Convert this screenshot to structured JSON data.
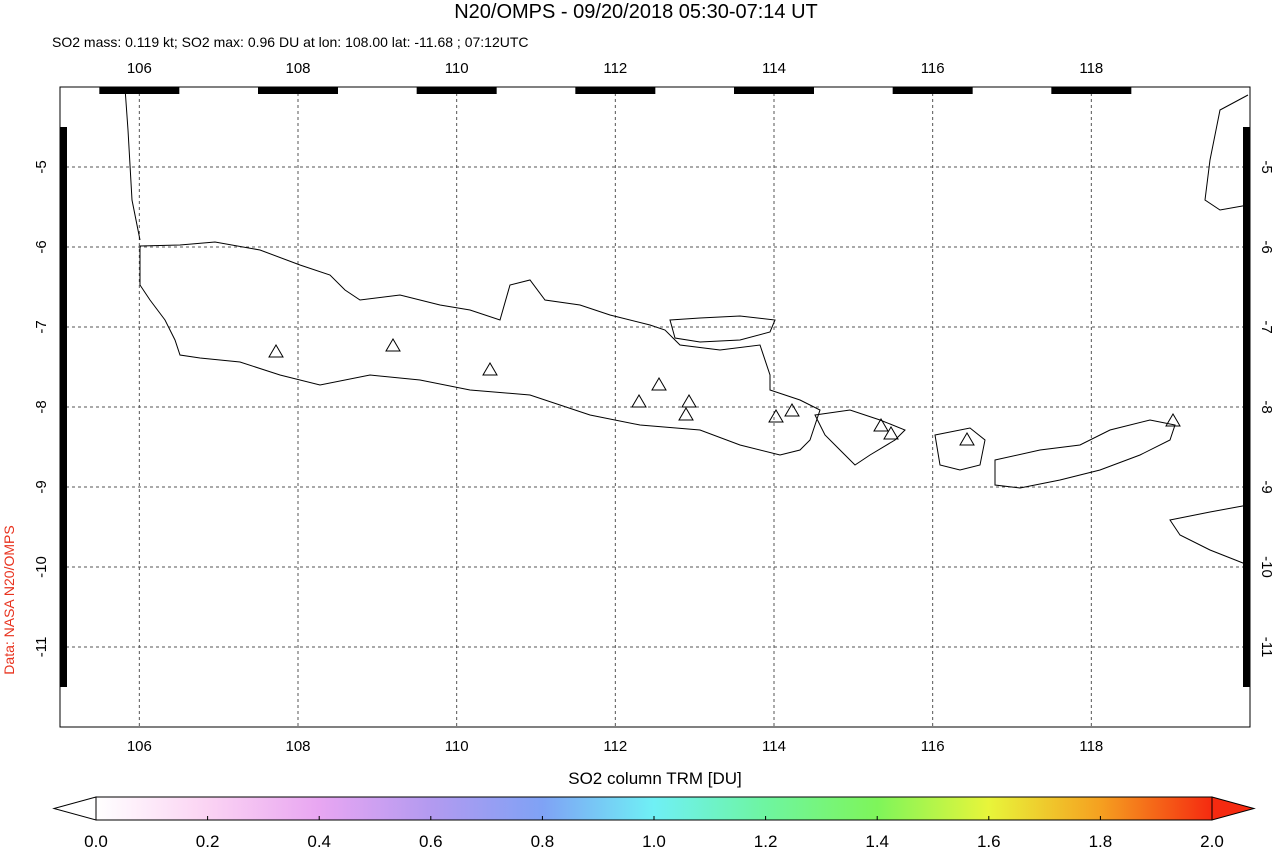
{
  "chart_data": {
    "type": "map",
    "title": "N20/OMPS - 09/20/2018 05:30-07:14 UT",
    "subtitle": "SO2 mass: 0.119 kt; SO2 max: 0.96 DU at lon: 108.00 lat: -11.68 ; 07:12UTC",
    "source_label": "Data: NASA N20/OMPS",
    "xlim": [
      105,
      120
    ],
    "ylim": [
      -12,
      -4
    ],
    "xticks": [
      106,
      108,
      110,
      112,
      114,
      116,
      118
    ],
    "yticks": [
      -5,
      -6,
      -7,
      -8,
      -9,
      -10,
      -11
    ],
    "grid": true,
    "colorbar": {
      "label": "SO2 column TRM [DU]",
      "lim": [
        0,
        2
      ],
      "ticks": [
        {
          "value": 0,
          "label": "0.0"
        },
        {
          "value": 0.2,
          "label": "0.2"
        },
        {
          "value": 0.4,
          "label": "0.4"
        },
        {
          "value": 0.6,
          "label": "0.6"
        },
        {
          "value": 0.8,
          "label": "0.8"
        },
        {
          "value": 1,
          "label": "1.0"
        },
        {
          "value": 1.2,
          "label": "1.2"
        },
        {
          "value": 1.4,
          "label": "1.4"
        },
        {
          "value": 1.6,
          "label": "1.6"
        },
        {
          "value": 1.8,
          "label": "1.8"
        },
        {
          "value": 2,
          "label": "2.0"
        }
      ],
      "colors": [
        "#ffffff",
        "#fbd3f3",
        "#e8a6f2",
        "#b39af0",
        "#7fa2f5",
        "#6ff0f5",
        "#6ef5a0",
        "#7ef55a",
        "#e8f53a",
        "#f5a020",
        "#f52a10"
      ]
    }
  }
}
